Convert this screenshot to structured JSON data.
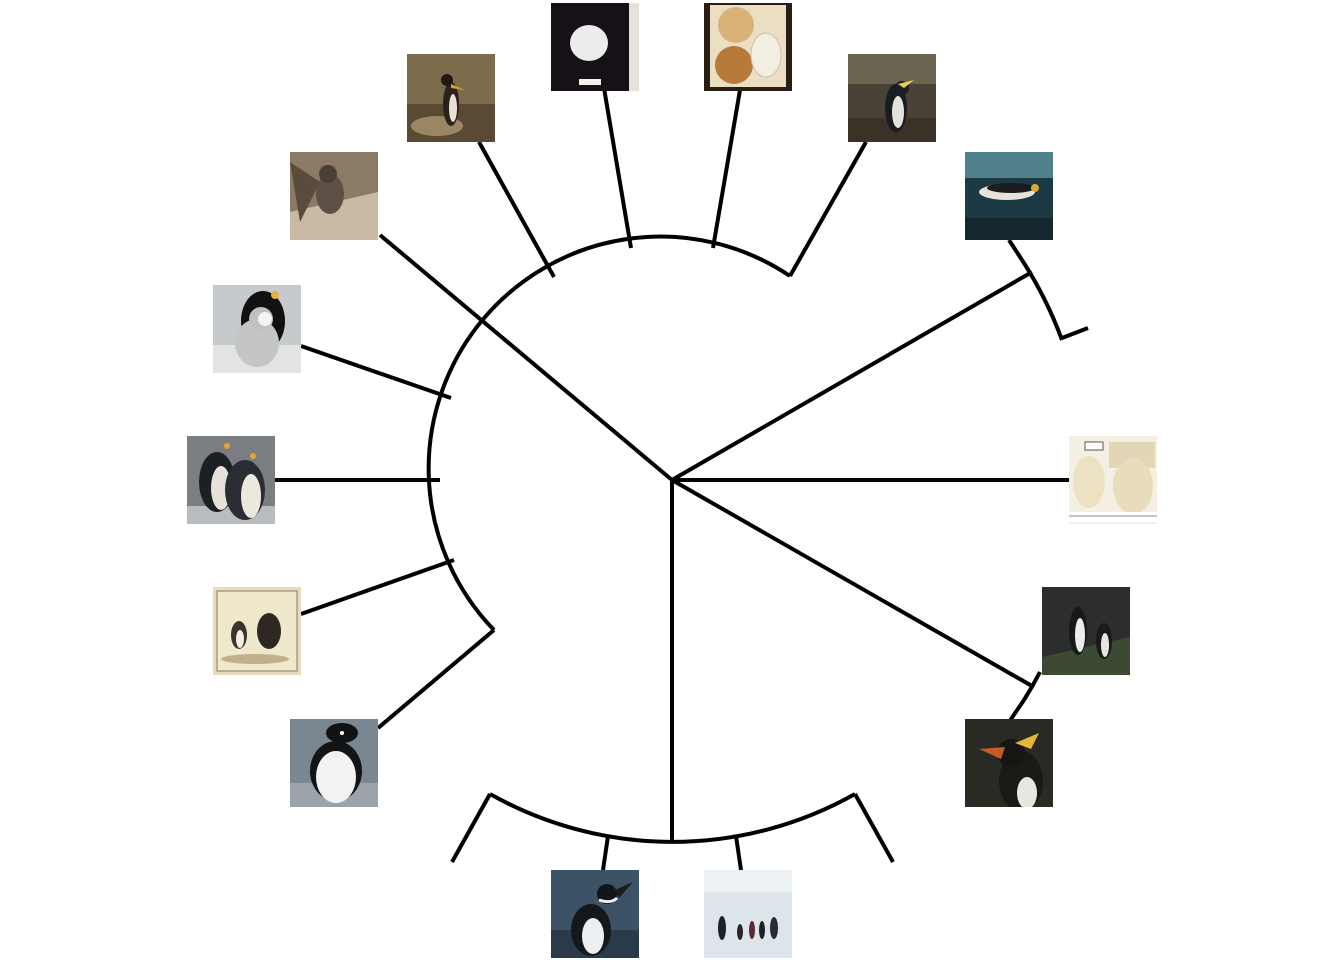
{
  "diagram": {
    "type": "circular-phylogenetic-tree",
    "edge_color": "#000000",
    "background": "#ffffff"
  },
  "tips": [
    {
      "id": "t1",
      "kind": "photo",
      "subject": "penguin-on-rocks",
      "colors": [
        "#7a6a4a",
        "#3a2e22",
        "#c9b48a"
      ]
    },
    {
      "id": "t2",
      "kind": "photo",
      "subject": "egg-specimen-dark",
      "colors": [
        "#141014",
        "#e8e8e8",
        "#f0eee6"
      ]
    },
    {
      "id": "t3",
      "kind": "photo",
      "subject": "eggs-in-box",
      "colors": [
        "#c98e4a",
        "#e6d9b8",
        "#3a2a1c"
      ]
    },
    {
      "id": "t4",
      "kind": "photo",
      "subject": "crested-penguin-forest",
      "colors": [
        "#5a5040",
        "#d8d4cc",
        "#1a1a22"
      ]
    },
    {
      "id": "t5",
      "kind": "photo",
      "subject": "penguin-swimming",
      "colors": [
        "#1e3a44",
        "#5a8a94",
        "#e8e4dc"
      ]
    },
    {
      "id": "t6",
      "kind": "photo",
      "subject": "pair-of-eggs-ruler",
      "colors": [
        "#efe6cc",
        "#d6c8a4",
        "#f6f4ee"
      ]
    },
    {
      "id": "t7",
      "kind": "photo",
      "subject": "penguins-on-cliff",
      "colors": [
        "#2a2c2a",
        "#e6e6e2",
        "#4a5a3a"
      ]
    },
    {
      "id": "t8",
      "kind": "photo",
      "subject": "macaroni-penguin",
      "colors": [
        "#1c1a16",
        "#e4b83a",
        "#c85a2a"
      ]
    },
    {
      "id": "t9",
      "kind": "photo",
      "subject": "emperor-penguins-group",
      "colors": [
        "#dfe8ec",
        "#1c2226",
        "#f0f2f2"
      ]
    },
    {
      "id": "t10",
      "kind": "photo",
      "subject": "magellanic-penguin",
      "colors": [
        "#2c3e52",
        "#e8ecee",
        "#111418"
      ]
    },
    {
      "id": "t11",
      "kind": "photo",
      "subject": "adelie-penguin",
      "colors": [
        "#7a8690",
        "#f2f2f2",
        "#101214"
      ]
    },
    {
      "id": "t12",
      "kind": "illustration",
      "subject": "penguin-plate-drawing",
      "colors": [
        "#efe6c8",
        "#3a332c",
        "#b8a680"
      ]
    },
    {
      "id": "t13",
      "kind": "photo",
      "subject": "king-penguins",
      "colors": [
        "#1c1f24",
        "#e6e2da",
        "#e8a23a"
      ]
    },
    {
      "id": "t14",
      "kind": "photo",
      "subject": "emperor-adult-and-chick",
      "colors": [
        "#c8ccce",
        "#111111",
        "#e8b23a"
      ]
    },
    {
      "id": "t15",
      "kind": "photo",
      "subject": "penguin-chick-in-nest",
      "colors": [
        "#8a7a66",
        "#4a3e32",
        "#c8baa2"
      ]
    }
  ]
}
